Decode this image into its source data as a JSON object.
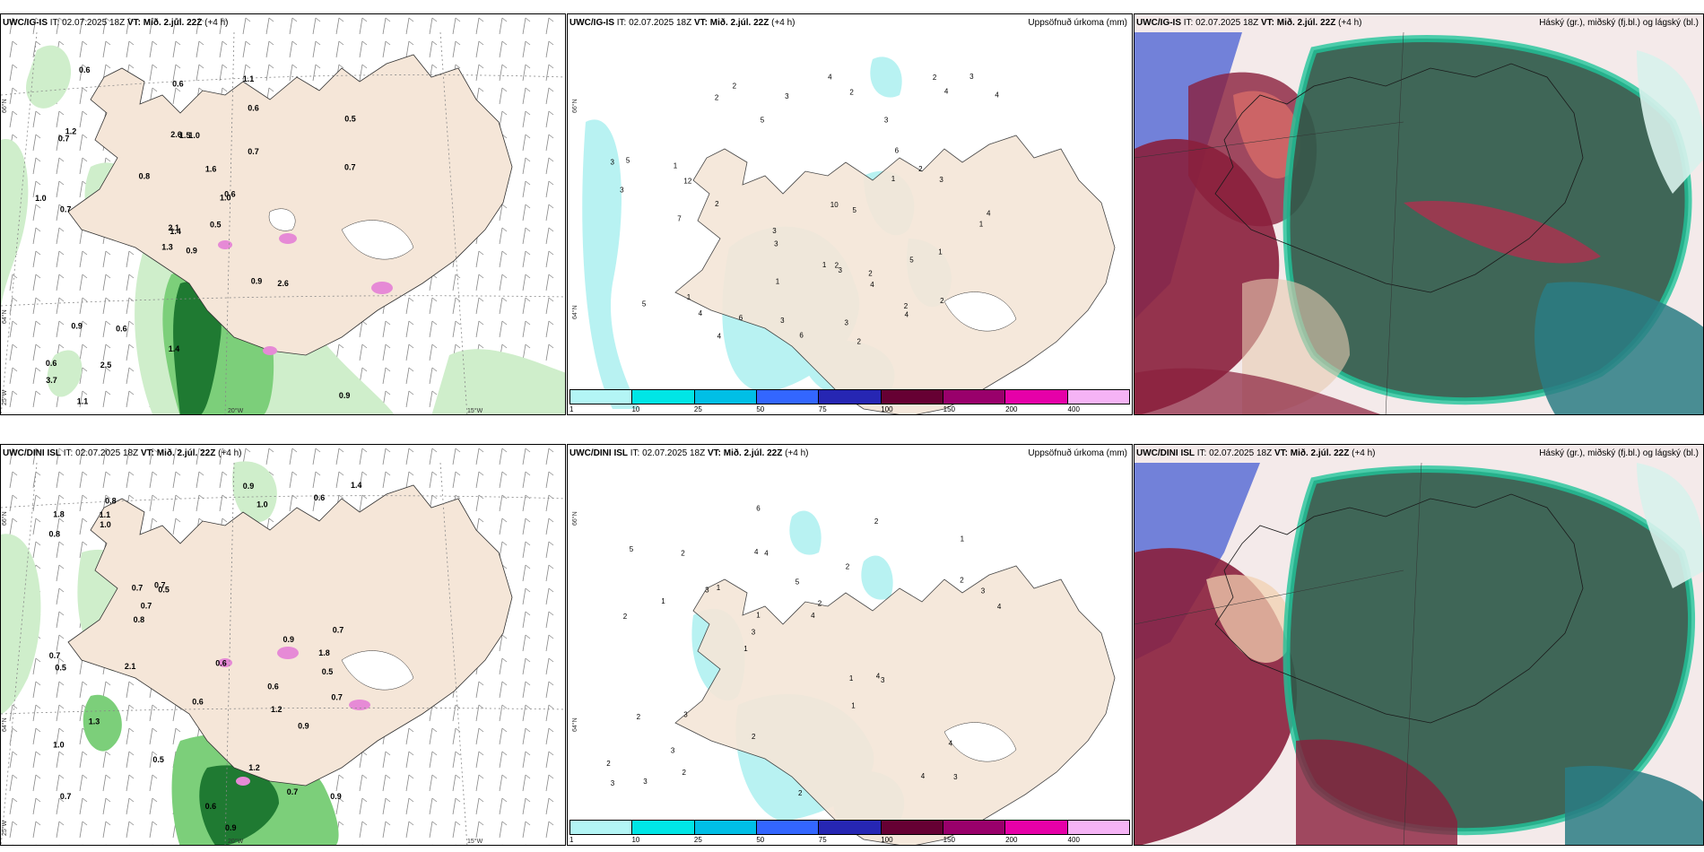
{
  "rows": [
    {
      "model": "UWC/IG-IS",
      "it": "IT: 02.07.2025 18Z",
      "vt_label": "VT:",
      "vt": "Mið. 2.júl. 22Z",
      "lead": "(+4 h)"
    },
    {
      "model": "UWC/DINI ISL",
      "it": "IT: 02.07.2025 18Z",
      "vt_label": "VT:",
      "vt": "Mið. 2.júl. 22Z",
      "lead": "(+4 h)"
    }
  ],
  "precip_title": "Uppsöfnuð úrkoma (mm)",
  "cloud_title": "Háský (gr.), miðský (fj.bl.) og lágský (bl.)",
  "legend": {
    "labels": [
      "1",
      "10",
      "25",
      "50",
      "75",
      "100",
      "150",
      "200",
      "400"
    ],
    "colors": [
      "#b3f5f5",
      "#00e6e6",
      "#00bfe6",
      "#3366ff",
      "#2626b3",
      "#660033",
      "#99006b",
      "#e600a8",
      "#f5b3f5"
    ]
  },
  "axis_labels": {
    "lat66": "66°N",
    "lat64": "64°N",
    "lon25": "25°W",
    "lon20": "20°W",
    "lon15": "15°W"
  },
  "colors": {
    "land": "#f5e6d8",
    "wind_green_light": "#cfeecb",
    "wind_green_mid": "#7ccf7a",
    "wind_green_dark": "#1f7a32",
    "precip_cyan": "#b8f2f2",
    "cloud_dark_green": "#2f5a4a",
    "cloud_teal": "#20c49a",
    "cloud_maroon": "#8a1f3c",
    "cloud_blue": "#5b6fd6"
  },
  "labels_panel1": [
    "0.9",
    "0.7",
    "1.4",
    "0.6",
    "1.0",
    "0.6",
    "1.1",
    "1.0",
    "0.6",
    "0.5",
    "0.6",
    "0.9",
    "0.7",
    "0.5",
    "1.3",
    "0.7",
    "1.1",
    "2.6",
    "1.6",
    "0.9",
    "0.8",
    "3.7",
    "2.5",
    "1.5",
    "0.6",
    "2.6",
    "1.2",
    "0.6",
    "1.0",
    "0.9",
    "0.7",
    "2.1",
    "1.4"
  ],
  "labels_panel2": [
    "2",
    "2",
    "1",
    "1",
    "2",
    "3",
    "1",
    "2",
    "3",
    "4",
    "5",
    "3",
    "3",
    "2",
    "1",
    "2",
    "3",
    "4",
    "5",
    "3",
    "2",
    "3",
    "4",
    "4",
    "5",
    "6",
    "7",
    "12",
    "6",
    "5",
    "4",
    "3",
    "3",
    "6",
    "2",
    "3",
    "4",
    "5",
    "4",
    "2",
    "3",
    "10",
    "4",
    "2",
    "2",
    "1",
    "1",
    "1"
  ],
  "labels_panel4": [
    "0.6",
    "0.5",
    "0.7",
    "0.8",
    "0.5",
    "0.7",
    "1.0",
    "1.0",
    "0.7",
    "0.9",
    "0.8",
    "0.7",
    "1.8",
    "0.9",
    "0.5",
    "0.7",
    "0.6",
    "0.6",
    "0.7",
    "1.3",
    "1.4",
    "0.6",
    "0.8",
    "0.7",
    "0.9",
    "1.1",
    "1.2",
    "0.5",
    "1.0",
    "0.9",
    "0.6",
    "1.2",
    "0.7",
    "2.1",
    "1.8",
    "0.9"
  ],
  "labels_panel5": [
    "3",
    "2",
    "1",
    "1",
    "2",
    "3",
    "4",
    "5",
    "2",
    "1",
    "2",
    "3",
    "4",
    "2",
    "3",
    "5",
    "6",
    "4",
    "1",
    "2",
    "3",
    "2",
    "1",
    "2",
    "2",
    "3",
    "4",
    "4",
    "4",
    "2",
    "3",
    "1",
    "1",
    "2",
    "3",
    "4",
    "3"
  ]
}
